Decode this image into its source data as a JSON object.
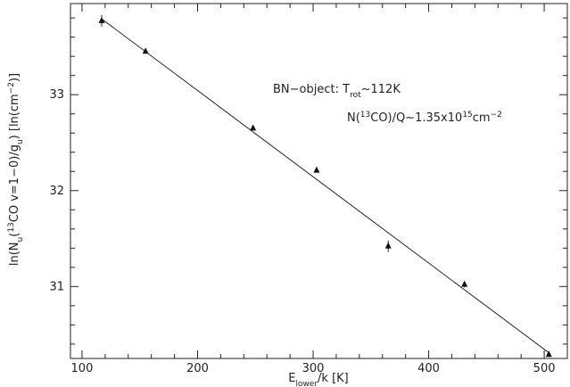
{
  "chart_data": {
    "type": "scatter",
    "xlabel": {
      "main": "E",
      "sub": "lower",
      "rest": "/k [K]"
    },
    "ylabel": {
      "a": "ln(N",
      "b": "(",
      "sup13": "13",
      "c": "CO v=1−0)/g",
      "d": ") [ln(cm",
      "supm2": "−2",
      "e": ")]",
      "sub_u": "u",
      "sub_u2": "u"
    },
    "xlim": [
      90,
      520
    ],
    "ylim": [
      30.25,
      33.95
    ],
    "xticks": [
      100,
      200,
      300,
      400,
      500
    ],
    "yticks": [
      31,
      32,
      33
    ],
    "xtick_labels": [
      "100",
      "200",
      "300",
      "400",
      "500"
    ],
    "ytick_labels": [
      "31",
      "32",
      "33"
    ],
    "grid": false,
    "points": [
      {
        "x": 117,
        "y": 33.77,
        "err": 0.06
      },
      {
        "x": 155,
        "y": 33.45,
        "err": 0.0
      },
      {
        "x": 248,
        "y": 32.65,
        "err": 0.0
      },
      {
        "x": 303,
        "y": 32.21,
        "err": 0.0
      },
      {
        "x": 365,
        "y": 31.42,
        "err": 0.06
      },
      {
        "x": 431,
        "y": 31.02,
        "err": 0.03
      },
      {
        "x": 504,
        "y": 30.29,
        "err": 0.0
      }
    ],
    "fit_line": {
      "x": [
        117,
        504
      ],
      "y": [
        33.79,
        30.31
      ]
    },
    "annotations": {
      "line1_prefix": "BN−object:  T",
      "line1_sub": "rot",
      "line1_suffix": "∼112K",
      "line2_a": "N(",
      "line2_sup": "13",
      "line2_b": "CO)/Q∼1.35x10",
      "line2_sup2": "15",
      "line2_c": "cm",
      "line2_sup3": "−2"
    }
  }
}
